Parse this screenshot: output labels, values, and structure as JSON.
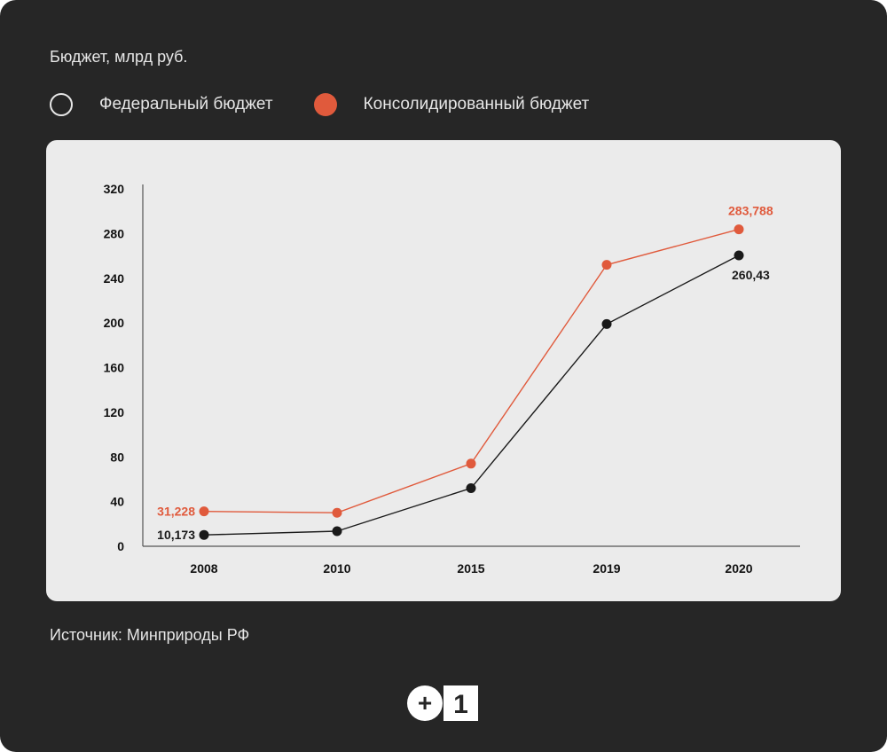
{
  "subtitle": "Бюджет, млрд руб.",
  "legend": [
    {
      "label": "Федеральный бюджет",
      "style": "open",
      "color": "#e6e6e6"
    },
    {
      "label": "Консолидированный бюджет",
      "style": "filled",
      "color": "#e05a3c"
    }
  ],
  "source": "Источник: Минприроды РФ",
  "logo": {
    "plus": "+",
    "one": "1"
  },
  "chart_data": {
    "type": "line",
    "title": "Бюджет, млрд руб.",
    "xlabel": "",
    "ylabel": "",
    "categories": [
      "2008",
      "2010",
      "2015",
      "2019",
      "2020"
    ],
    "ylim": [
      0,
      320
    ],
    "yticks": [
      0,
      40,
      80,
      120,
      160,
      200,
      240,
      280,
      320
    ],
    "grid": false,
    "series": [
      {
        "name": "Федеральный бюджет",
        "color": "#1a1a1a",
        "values": [
          10.173,
          13.5,
          52,
          199,
          260.43
        ],
        "labels": {
          "0": "10,173",
          "4": "260,43"
        }
      },
      {
        "name": "Консолидированный бюджет",
        "color": "#e05a3c",
        "values": [
          31.228,
          30,
          74,
          252,
          283.788
        ],
        "labels": {
          "0": "31,228",
          "4": "283,788"
        }
      }
    ]
  }
}
